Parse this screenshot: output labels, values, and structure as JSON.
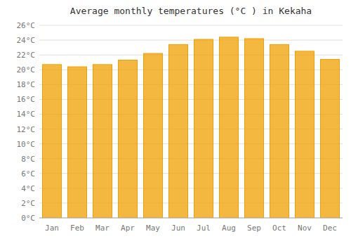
{
  "chart_data": {
    "type": "bar",
    "title": "Average monthly temperatures (°C ) in Kekaha",
    "categories": [
      "Jan",
      "Feb",
      "Mar",
      "Apr",
      "May",
      "Jun",
      "Jul",
      "Aug",
      "Sep",
      "Oct",
      "Nov",
      "Dec"
    ],
    "values": [
      20.7,
      20.4,
      20.7,
      21.3,
      22.2,
      23.4,
      24.1,
      24.4,
      24.2,
      23.4,
      22.5,
      21.4
    ],
    "color": "#F0A000",
    "ylim": [
      0,
      26
    ],
    "yticks": [
      {
        "value": 0,
        "label": "0°C"
      },
      {
        "value": 2,
        "label": "2°C"
      },
      {
        "value": 4,
        "label": "4°C"
      },
      {
        "value": 6,
        "label": "6°C"
      },
      {
        "value": 8,
        "label": "8°C"
      },
      {
        "value": 10,
        "label": "10°C"
      },
      {
        "value": 12,
        "label": "12°C"
      },
      {
        "value": 14,
        "label": "14°C"
      },
      {
        "value": 16,
        "label": "16°C"
      },
      {
        "value": 18,
        "label": "18°C"
      },
      {
        "value": 20,
        "label": "20°C"
      },
      {
        "value": 22,
        "label": "22°C"
      },
      {
        "value": 24,
        "label": "24°C"
      },
      {
        "value": 26,
        "label": "26°C"
      }
    ],
    "grid": true
  }
}
